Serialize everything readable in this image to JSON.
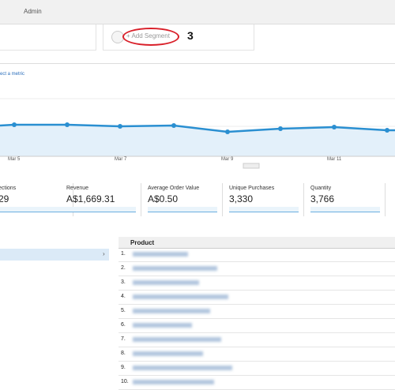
{
  "header": {
    "tab": "Admin"
  },
  "segment": {
    "label": "+ Add Segment",
    "annotation": "3"
  },
  "chart": {
    "metric_link": "ect a metric",
    "x_labels": [
      "Mar 5",
      "Mar 7",
      "Mar 9",
      "Mar 11"
    ]
  },
  "metrics": [
    {
      "name": "ections",
      "value": "29"
    },
    {
      "name": "Revenue",
      "value": "A$1,669.31"
    },
    {
      "name": "Average Order Value",
      "value": "A$0.50"
    },
    {
      "name": "Unique Purchases",
      "value": "3,330"
    },
    {
      "name": "Quantity",
      "value": "3,766"
    }
  ],
  "table": {
    "header": "Product",
    "rows": [
      "1.",
      "2.",
      "3.",
      "4.",
      "5.",
      "6.",
      "7.",
      "8.",
      "9.",
      "10."
    ]
  }
}
